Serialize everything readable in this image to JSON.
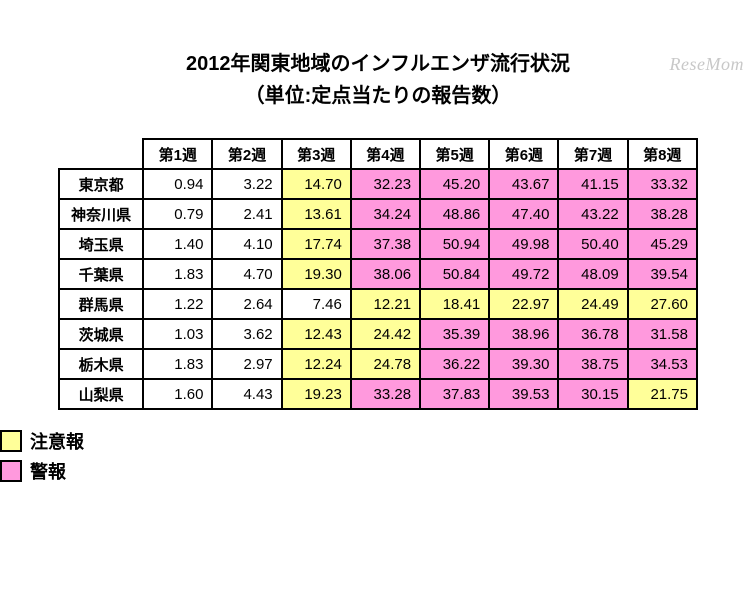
{
  "watermark": "ReseMom",
  "title_line1": "2012年関東地域のインフルエンザ流行状況",
  "title_line2": "（単位:定点当たりの報告数）",
  "colors": {
    "none": "#ffffff",
    "caution": "#ffff99",
    "alert": "#ff99dd",
    "border": "#000000",
    "text": "#000000"
  },
  "thresholds": {
    "caution": 10.0,
    "alert": 30.0
  },
  "columns": [
    "第1週",
    "第2週",
    "第3週",
    "第4週",
    "第5週",
    "第6週",
    "第7週",
    "第8週"
  ],
  "rows": [
    {
      "pref": "東京都",
      "values": [
        0.94,
        3.22,
        14.7,
        32.23,
        45.2,
        43.67,
        41.15,
        33.32
      ]
    },
    {
      "pref": "神奈川県",
      "values": [
        0.79,
        2.41,
        13.61,
        34.24,
        48.86,
        47.4,
        43.22,
        38.28
      ]
    },
    {
      "pref": "埼玉県",
      "values": [
        1.4,
        4.1,
        17.74,
        37.38,
        50.94,
        49.98,
        50.4,
        45.29
      ]
    },
    {
      "pref": "千葉県",
      "values": [
        1.83,
        4.7,
        19.3,
        38.06,
        50.84,
        49.72,
        48.09,
        39.54
      ]
    },
    {
      "pref": "群馬県",
      "values": [
        1.22,
        2.64,
        7.46,
        12.21,
        18.41,
        22.97,
        24.49,
        27.6
      ]
    },
    {
      "pref": "茨城県",
      "values": [
        1.03,
        3.62,
        12.43,
        24.42,
        35.39,
        38.96,
        36.78,
        31.58
      ]
    },
    {
      "pref": "栃木県",
      "values": [
        1.83,
        2.97,
        12.24,
        24.78,
        36.22,
        39.3,
        38.75,
        34.53
      ]
    },
    {
      "pref": "山梨県",
      "values": [
        1.6,
        4.43,
        19.23,
        33.28,
        37.83,
        39.53,
        30.15,
        21.75
      ]
    }
  ],
  "legend": {
    "caution_label": "注意報",
    "alert_label": "警報"
  }
}
